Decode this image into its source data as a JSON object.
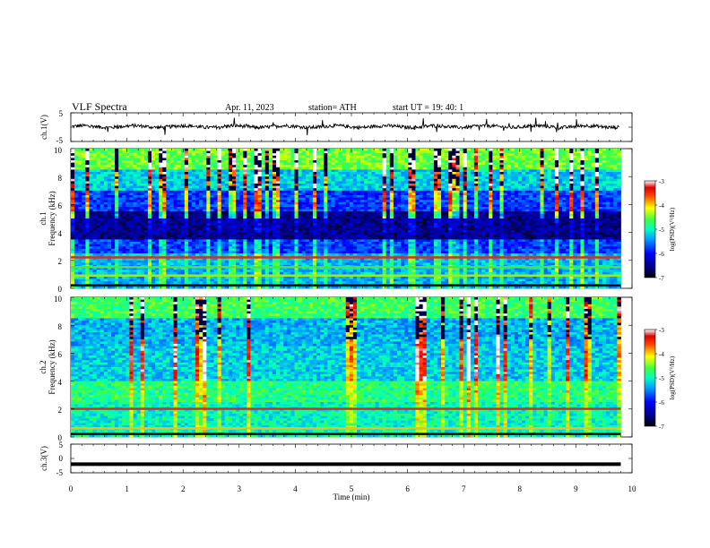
{
  "header": {
    "title": "VLF  Spectra",
    "date": "Apr. 11, 2023",
    "station": "station= ATH",
    "start": "start  UT  =   19: 40: 1"
  },
  "chart_data": [
    {
      "type": "line",
      "name": "ch1-waveform",
      "ylabel": "ch.1(V)",
      "ylim": [
        -5,
        5
      ],
      "y_ticks": [
        "5",
        "-5"
      ],
      "xlim": [
        0,
        10
      ],
      "baseline": 0.2,
      "noise_amplitude": 0.6,
      "spike_amplitude": 2.5
    },
    {
      "type": "heatmap",
      "name": "ch1-spectrogram",
      "ylabel": "ch.1\nFrequency  (kHz)",
      "ylabel_line1": "ch.1",
      "ylabel_line2": "Frequency  (kHz)",
      "xlim": [
        0,
        9.8
      ],
      "ylim": [
        0,
        10
      ],
      "y_ticks": [
        "0",
        "2",
        "4",
        "6",
        "8",
        "10"
      ],
      "colorbar": {
        "label": "log(PSD)(V²/Hz)",
        "range": [
          -7,
          -3
        ],
        "ticks": [
          "-3",
          "-4",
          "-5",
          "-6",
          "-7"
        ]
      },
      "bands": [
        {
          "freq_khz": 2.2,
          "color": "#d0302a"
        },
        {
          "freq_khz": 1.5,
          "color": "#4fe04a"
        },
        {
          "freq_khz": 0.9,
          "color": "#9ce82a"
        },
        {
          "freq_khz": 0.2,
          "color": "#101010"
        }
      ]
    },
    {
      "type": "heatmap",
      "name": "ch2-spectrogram",
      "ylabel": "ch.2\nFrequency  (kHz)",
      "ylabel_line1": "ch.2",
      "ylabel_line2": "Frequency  (kHz)",
      "xlim": [
        0,
        9.8
      ],
      "ylim": [
        0,
        10
      ],
      "y_ticks": [
        "0",
        "2",
        "4",
        "6",
        "8",
        "10"
      ],
      "colorbar": {
        "label": "log(PSD)(V²/Hz)",
        "range": [
          -7,
          -3
        ],
        "ticks": [
          "-3",
          "-4",
          "-5",
          "-6",
          "-7"
        ]
      },
      "bands": [
        {
          "freq_khz": 2.0,
          "color": "#d0302a"
        },
        {
          "freq_khz": 0.6,
          "color": "#e3c22a"
        },
        {
          "freq_khz": 0.2,
          "color": "#101010"
        }
      ]
    },
    {
      "type": "line",
      "name": "ch3-waveform",
      "ylabel": "ch.3(V)",
      "ylim": [
        -5,
        5
      ],
      "y_ticks": [
        "5",
        "0",
        "-5"
      ],
      "xlim": [
        0,
        10
      ],
      "level": -2.0
    }
  ],
  "xaxis": {
    "label": "Time  (min)",
    "ticks": [
      "0",
      "1",
      "2",
      "3",
      "4",
      "5",
      "6",
      "7",
      "8",
      "9",
      "10"
    ],
    "range": [
      0,
      10
    ]
  }
}
